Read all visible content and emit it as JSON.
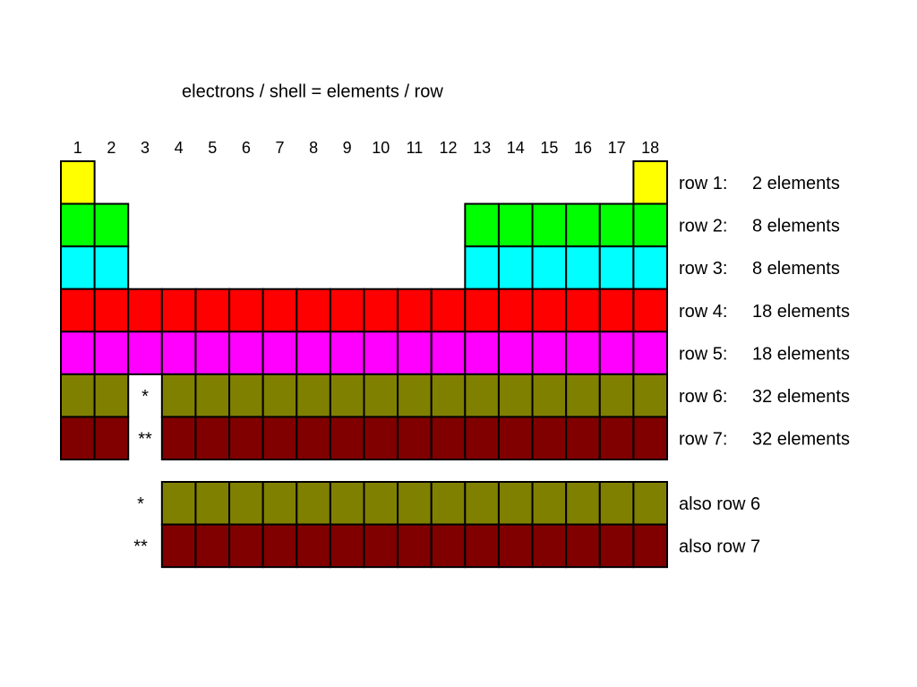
{
  "title": "electrons / shell = elements / row",
  "groups": [
    "1",
    "2",
    "3",
    "4",
    "5",
    "6",
    "7",
    "8",
    "9",
    "10",
    "11",
    "12",
    "13",
    "14",
    "15",
    "16",
    "17",
    "18"
  ],
  "rows": [
    {
      "label": "row 1:",
      "count": "2 elements",
      "color": "#ffff00"
    },
    {
      "label": "row 2:",
      "count": "8 elements",
      "color": "#00ff00"
    },
    {
      "label": "row 3:",
      "count": "8 elements",
      "color": "#00ffff"
    },
    {
      "label": "row 4:",
      "count": "18 elements",
      "color": "#ff0000"
    },
    {
      "label": "row 5:",
      "count": "18 elements",
      "color": "#ff00ff"
    },
    {
      "label": "row 6:",
      "count": "32 elements",
      "color": "#808000",
      "marker": "*"
    },
    {
      "label": "row 7:",
      "count": "32 elements",
      "color": "#800000",
      "marker": "**"
    }
  ],
  "footnotes": [
    {
      "marker": "*",
      "label": "also row 6",
      "color": "#808000"
    },
    {
      "marker": "**",
      "label": "also row 7",
      "color": "#800000"
    }
  ]
}
